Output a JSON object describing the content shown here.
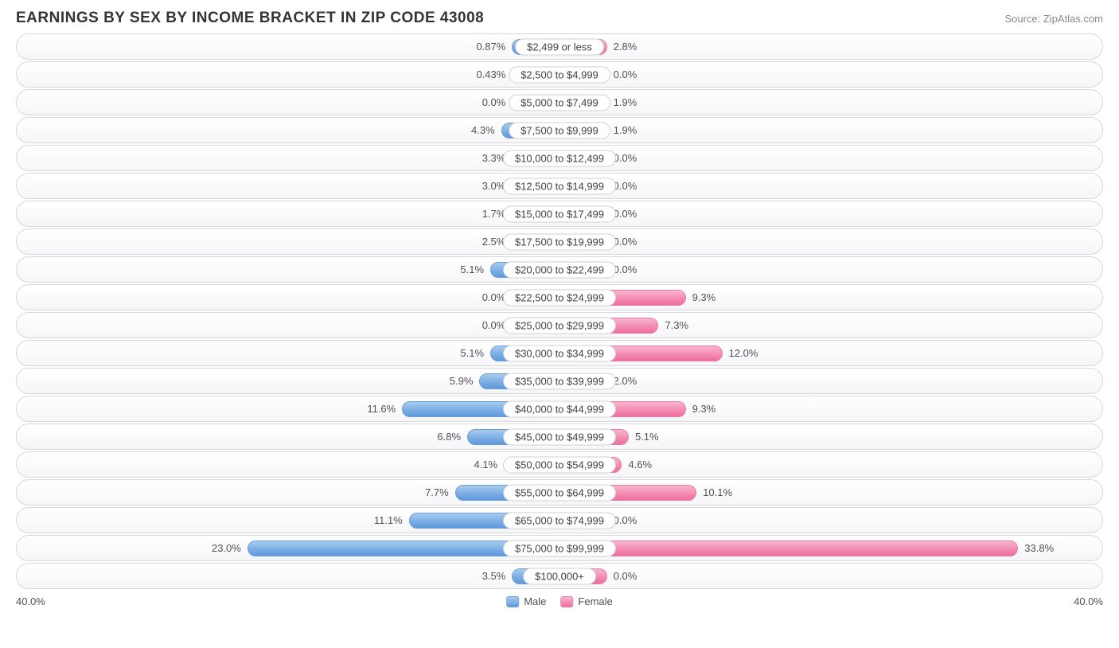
{
  "title": "EARNINGS BY SEX BY INCOME BRACKET IN ZIP CODE 43008",
  "source": "Source: ZipAtlas.com",
  "chart": {
    "type": "diverging-bar",
    "axis_max_pct": 40.0,
    "axis_label_left": "40.0%",
    "axis_label_right": "40.0%",
    "min_bar_pct": 3.5,
    "colors": {
      "male_light": "#a9cbef",
      "male_dark": "#5f98dc",
      "male_border": "#6a9ed8",
      "female_light": "#f9b6cd",
      "female_dark": "#ee6ea0",
      "female_border": "#e87ba6",
      "row_border": "#d8d8dc",
      "row_bg_top": "#ffffff",
      "row_bg_bottom": "#f6f6f8",
      "text": "#505058",
      "title_text": "#333338",
      "label_bg": "#ffffff",
      "label_border": "#d0d0d4"
    },
    "legend": {
      "male": "Male",
      "female": "Female"
    },
    "rows": [
      {
        "label": "$2,499 or less",
        "male": 0.87,
        "male_txt": "0.87%",
        "female": 2.8,
        "female_txt": "2.8%"
      },
      {
        "label": "$2,500 to $4,999",
        "male": 0.43,
        "male_txt": "0.43%",
        "female": 0.0,
        "female_txt": "0.0%"
      },
      {
        "label": "$5,000 to $7,499",
        "male": 0.0,
        "male_txt": "0.0%",
        "female": 1.9,
        "female_txt": "1.9%"
      },
      {
        "label": "$7,500 to $9,999",
        "male": 4.3,
        "male_txt": "4.3%",
        "female": 1.9,
        "female_txt": "1.9%"
      },
      {
        "label": "$10,000 to $12,499",
        "male": 3.3,
        "male_txt": "3.3%",
        "female": 0.0,
        "female_txt": "0.0%"
      },
      {
        "label": "$12,500 to $14,999",
        "male": 3.0,
        "male_txt": "3.0%",
        "female": 0.0,
        "female_txt": "0.0%"
      },
      {
        "label": "$15,000 to $17,499",
        "male": 1.7,
        "male_txt": "1.7%",
        "female": 0.0,
        "female_txt": "0.0%"
      },
      {
        "label": "$17,500 to $19,999",
        "male": 2.5,
        "male_txt": "2.5%",
        "female": 0.0,
        "female_txt": "0.0%"
      },
      {
        "label": "$20,000 to $22,499",
        "male": 5.1,
        "male_txt": "5.1%",
        "female": 0.0,
        "female_txt": "0.0%"
      },
      {
        "label": "$22,500 to $24,999",
        "male": 0.0,
        "male_txt": "0.0%",
        "female": 9.3,
        "female_txt": "9.3%"
      },
      {
        "label": "$25,000 to $29,999",
        "male": 0.0,
        "male_txt": "0.0%",
        "female": 7.3,
        "female_txt": "7.3%"
      },
      {
        "label": "$30,000 to $34,999",
        "male": 5.1,
        "male_txt": "5.1%",
        "female": 12.0,
        "female_txt": "12.0%"
      },
      {
        "label": "$35,000 to $39,999",
        "male": 5.9,
        "male_txt": "5.9%",
        "female": 2.0,
        "female_txt": "2.0%"
      },
      {
        "label": "$40,000 to $44,999",
        "male": 11.6,
        "male_txt": "11.6%",
        "female": 9.3,
        "female_txt": "9.3%"
      },
      {
        "label": "$45,000 to $49,999",
        "male": 6.8,
        "male_txt": "6.8%",
        "female": 5.1,
        "female_txt": "5.1%"
      },
      {
        "label": "$50,000 to $54,999",
        "male": 4.1,
        "male_txt": "4.1%",
        "female": 4.6,
        "female_txt": "4.6%"
      },
      {
        "label": "$55,000 to $64,999",
        "male": 7.7,
        "male_txt": "7.7%",
        "female": 10.1,
        "female_txt": "10.1%"
      },
      {
        "label": "$65,000 to $74,999",
        "male": 11.1,
        "male_txt": "11.1%",
        "female": 0.0,
        "female_txt": "0.0%"
      },
      {
        "label": "$75,000 to $99,999",
        "male": 23.0,
        "male_txt": "23.0%",
        "female": 33.8,
        "female_txt": "33.8%"
      },
      {
        "label": "$100,000+",
        "male": 3.5,
        "male_txt": "3.5%",
        "female": 0.0,
        "female_txt": "0.0%"
      }
    ]
  }
}
